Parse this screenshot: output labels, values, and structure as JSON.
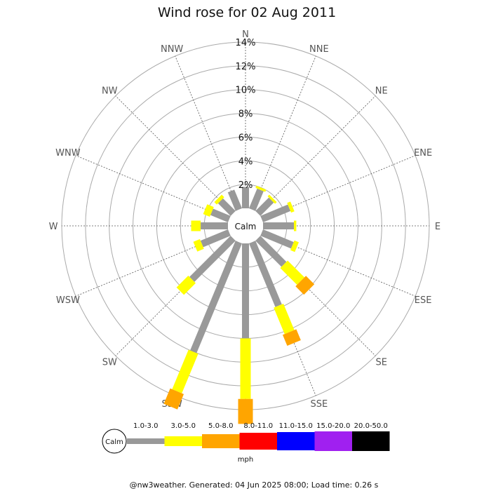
{
  "chart_data": {
    "type": "wind-rose",
    "title": "Wind rose for 02 Aug 2011",
    "directions": [
      "N",
      "NNE",
      "NE",
      "ENE",
      "E",
      "ESE",
      "SE",
      "SSE",
      "S",
      "SSW",
      "SW",
      "WSW",
      "W",
      "WNW",
      "NW",
      "NNW"
    ],
    "radial_ticks": [
      "2%",
      "4%",
      "6%",
      "8%",
      "10%",
      "12%",
      "14%"
    ],
    "radial_max": 14,
    "calm_label": "Calm",
    "speed_bins": [
      {
        "label": "1.0-3.0",
        "color": "#999999"
      },
      {
        "label": "3.0-5.0",
        "color": "#ffff00"
      },
      {
        "label": "5.0-8.0",
        "color": "#ffa500"
      },
      {
        "label": "8.0-11.0",
        "color": "#ff0000"
      },
      {
        "label": "11.0-15.0",
        "color": "#0000ff"
      },
      {
        "label": "15.0-20.0",
        "color": "#a020f0"
      },
      {
        "label": "20.0-50.0",
        "color": "#000000"
      }
    ],
    "units": "mph",
    "series": [
      {
        "direction": "N",
        "values": [
          1.8,
          0.0,
          0.0
        ]
      },
      {
        "direction": "NNE",
        "values": [
          1.8,
          0.2,
          0.0
        ]
      },
      {
        "direction": "NE",
        "values": [
          1.6,
          0.2,
          0.0
        ]
      },
      {
        "direction": "ENE",
        "values": [
          2.5,
          0.3,
          0.0
        ]
      },
      {
        "direction": "E",
        "values": [
          2.6,
          0.2,
          0.0
        ]
      },
      {
        "direction": "ESE",
        "values": [
          2.8,
          0.4,
          0.0
        ]
      },
      {
        "direction": "SE",
        "values": [
          3.1,
          2.0,
          1.0
        ]
      },
      {
        "direction": "SSE",
        "values": [
          5.8,
          2.4,
          1.0
        ]
      },
      {
        "direction": "S",
        "values": [
          8.0,
          5.1,
          2.1
        ]
      },
      {
        "direction": "SSW",
        "values": [
          10.0,
          3.6,
          1.4
        ]
      },
      {
        "direction": "SW",
        "values": [
          4.9,
          1.4,
          0.0
        ]
      },
      {
        "direction": "WSW",
        "values": [
          2.5,
          0.6,
          0.0
        ]
      },
      {
        "direction": "W",
        "values": [
          2.3,
          0.8,
          0.0
        ]
      },
      {
        "direction": "WNW",
        "values": [
          1.6,
          0.6,
          0.0
        ]
      },
      {
        "direction": "NW",
        "values": [
          1.5,
          0.3,
          0.0
        ]
      },
      {
        "direction": "NNW",
        "values": [
          1.7,
          0.0,
          0.0
        ]
      }
    ]
  },
  "footer": "@nw3weather. Generated: 04 Jun 2025 08:00; Load time: 0.26 s"
}
